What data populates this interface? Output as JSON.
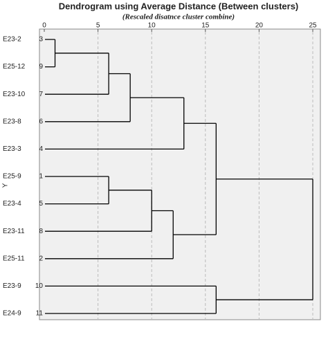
{
  "chart_data": {
    "type": "dendrogram",
    "title": "Dendrogram using Average Distance (Between clusters)",
    "subtitle": "(Rescaled disatnce cluster combine)",
    "y_label": "Y",
    "xlim": [
      0,
      25
    ],
    "xticks": [
      0,
      5,
      10,
      15,
      20,
      25
    ],
    "grid": true,
    "color": "#000000",
    "tree": {
      "height": 25,
      "children": [
        {
          "height": 16,
          "children": [
            {
              "height": 13,
              "children": [
                {
                  "height": 8,
                  "children": [
                    {
                      "height": 6,
                      "children": [
                        {
                          "height": 1,
                          "children": [
                            {
                              "label": "E23-2",
                              "number": 3
                            },
                            {
                              "label": "E25-12",
                              "number": 9
                            }
                          ]
                        },
                        {
                          "label": "E23-10",
                          "number": 7
                        }
                      ]
                    },
                    {
                      "label": "E23-8",
                      "number": 6
                    }
                  ]
                },
                {
                  "label": "E23-3",
                  "number": 4
                }
              ]
            },
            {
              "height": 12,
              "children": [
                {
                  "height": 10,
                  "children": [
                    {
                      "height": 6,
                      "children": [
                        {
                          "label": "E25-9",
                          "number": 1
                        },
                        {
                          "label": "E23-4",
                          "number": 5
                        }
                      ]
                    },
                    {
                      "label": "E23-11",
                      "number": 8
                    }
                  ]
                },
                {
                  "label": "E25-11",
                  "number": 2
                }
              ]
            }
          ]
        },
        {
          "height": 16,
          "children": [
            {
              "label": "E23-9",
              "number": 10
            },
            {
              "label": "E24-9",
              "number": 11
            }
          ]
        }
      ]
    }
  }
}
